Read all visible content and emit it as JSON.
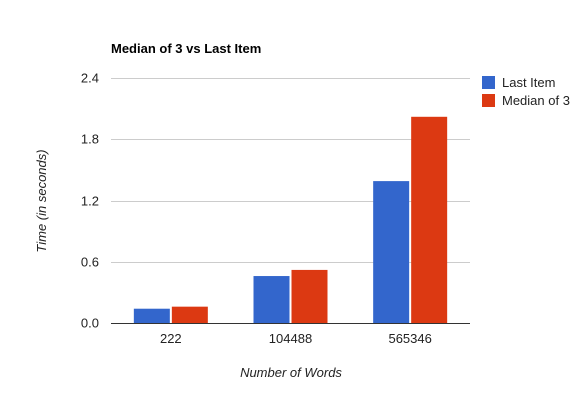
{
  "chart_data": {
    "type": "bar",
    "title": "Median of 3 vs Last Item",
    "xlabel": "Number of Words",
    "ylabel": "Time (in seconds)",
    "categories": [
      "222",
      "104488",
      "565346"
    ],
    "series": [
      {
        "name": "Last Item",
        "color": "#3366cc",
        "values": [
          0.14,
          0.46,
          1.39
        ]
      },
      {
        "name": "Median of 3",
        "color": "#dc3912",
        "values": [
          0.16,
          0.52,
          2.02
        ]
      }
    ],
    "ylim": [
      0,
      2.4
    ],
    "yticks": [
      "0.0",
      "0.6",
      "1.2",
      "1.8",
      "2.4"
    ],
    "grid": true,
    "legend_position": "right"
  }
}
